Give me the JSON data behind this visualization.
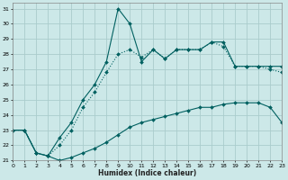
{
  "xlabel": "Humidex (Indice chaleur)",
  "background_color": "#cce8e8",
  "grid_color": "#aacccc",
  "line_color": "#006060",
  "xlim": [
    0,
    23
  ],
  "ylim": [
    21,
    31.4
  ],
  "xticks": [
    0,
    1,
    2,
    3,
    4,
    5,
    6,
    7,
    8,
    9,
    10,
    11,
    12,
    13,
    14,
    15,
    16,
    17,
    18,
    19,
    20,
    21,
    22,
    23
  ],
  "yticks": [
    21,
    22,
    23,
    24,
    25,
    26,
    27,
    28,
    29,
    30,
    31
  ],
  "series_jagged_x": [
    0,
    1,
    2,
    3,
    4,
    5,
    6,
    7,
    8,
    9,
    10,
    11,
    12,
    13,
    14,
    15,
    16,
    17,
    18,
    19,
    20,
    21,
    22,
    23
  ],
  "series_jagged_y": [
    23.0,
    23.0,
    21.5,
    21.3,
    22.5,
    23.5,
    25.0,
    26.0,
    27.5,
    31.0,
    30.0,
    27.5,
    28.3,
    27.7,
    28.3,
    28.3,
    28.3,
    28.8,
    28.8,
    27.2,
    27.2,
    27.2,
    27.2,
    27.2
  ],
  "series_dotted_x": [
    0,
    1,
    2,
    3,
    4,
    5,
    6,
    7,
    8,
    9,
    10,
    11,
    12,
    13,
    14,
    15,
    16,
    17,
    18,
    19,
    20,
    21,
    22,
    23
  ],
  "series_dotted_y": [
    23.0,
    23.0,
    21.5,
    21.3,
    22.0,
    23.0,
    24.5,
    25.5,
    26.8,
    28.0,
    28.3,
    27.8,
    28.3,
    27.7,
    28.3,
    28.3,
    28.3,
    28.8,
    28.5,
    27.2,
    27.2,
    27.2,
    27.0,
    26.8
  ],
  "series_lower_x": [
    0,
    1,
    2,
    3,
    4,
    5,
    6,
    7,
    8,
    9,
    10,
    11,
    12,
    13,
    14,
    15,
    16,
    17,
    18,
    19,
    20,
    21,
    22,
    23
  ],
  "series_lower_y": [
    23.0,
    23.0,
    21.5,
    21.3,
    21.0,
    21.2,
    21.5,
    21.8,
    22.2,
    22.7,
    23.2,
    23.5,
    23.7,
    23.9,
    24.1,
    24.3,
    24.5,
    24.5,
    24.7,
    24.8,
    24.8,
    24.8,
    24.5,
    23.5
  ]
}
